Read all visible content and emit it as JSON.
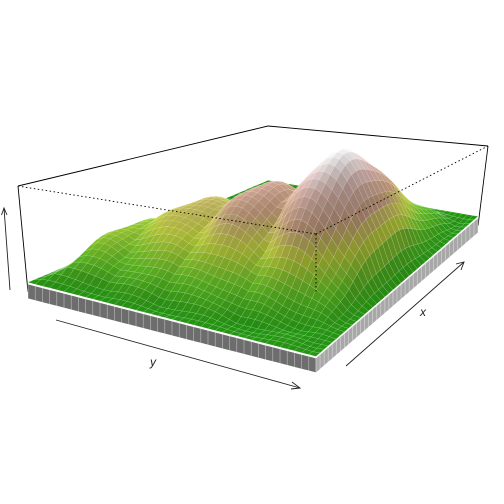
{
  "chart_data": {
    "type": "surface",
    "title": "",
    "xlabel": "x",
    "ylabel": "y",
    "zlabel": "",
    "xlim": [
      0,
      1
    ],
    "ylim": [
      0,
      1
    ],
    "zlim": [
      0,
      1
    ],
    "color_scale": [
      "#1a8f10",
      "#5db822",
      "#b8c838",
      "#c49a7c",
      "#d9b3ad",
      "#f2f2f2"
    ],
    "peaks": [
      {
        "x": 0.55,
        "y": 0.72,
        "height": 1.0
      },
      {
        "x": 0.45,
        "y": 0.5,
        "height": 0.72
      },
      {
        "x": 0.4,
        "y": 0.3,
        "height": 0.55
      },
      {
        "x": 0.3,
        "y": 0.12,
        "height": 0.35
      }
    ],
    "base_level": 0.08,
    "grid": true
  },
  "colors": {
    "side_dark": "#6d6d6d",
    "side_light": "#a8a8a8"
  }
}
